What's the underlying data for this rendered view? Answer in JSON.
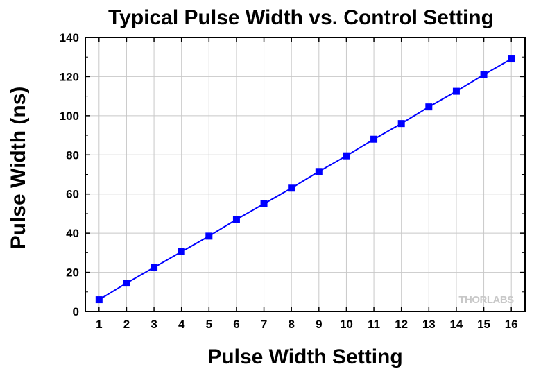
{
  "chart_data": {
    "type": "line",
    "title": "Typical Pulse Width vs. Control Setting",
    "xlabel": "Pulse Width Setting",
    "ylabel": "Pulse Width (ns)",
    "x": [
      1,
      2,
      3,
      4,
      5,
      6,
      7,
      8,
      9,
      10,
      11,
      12,
      13,
      14,
      15,
      16
    ],
    "series": [
      {
        "values": [
          6,
          14.5,
          22.5,
          30.5,
          38.5,
          47,
          55,
          63,
          71.5,
          79.5,
          88,
          96,
          104.5,
          112.5,
          121,
          129
        ],
        "color": "#0000ff",
        "marker": "square"
      }
    ],
    "xlim": [
      0.5,
      16.5
    ],
    "ylim": [
      0,
      140
    ],
    "xticks": [
      1,
      2,
      3,
      4,
      5,
      6,
      7,
      8,
      9,
      10,
      11,
      12,
      13,
      14,
      15,
      16
    ],
    "yticks": [
      0,
      20,
      40,
      60,
      80,
      100,
      120,
      140
    ],
    "grid": true,
    "watermark": "THORLABS"
  }
}
